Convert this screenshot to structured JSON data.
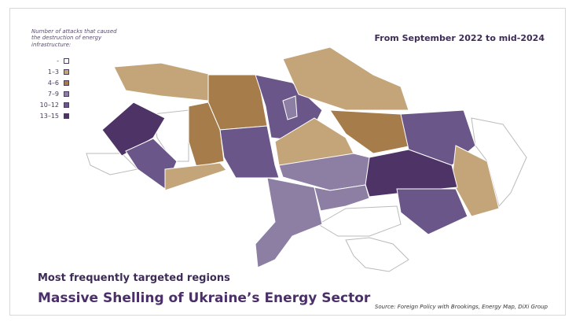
{
  "legend": {
    "title": "Number of attacks that caused the destruction of energy infrastructure:",
    "items": [
      {
        "label": "-",
        "color": "#ffffff"
      },
      {
        "label": "1–3",
        "color": "#c4a57a"
      },
      {
        "label": "4–6",
        "color": "#a57c4a"
      },
      {
        "label": "7–9",
        "color": "#8c7fa3"
      },
      {
        "label": "10–12",
        "color": "#6a5689"
      },
      {
        "label": "13–15",
        "color": "#4e3466"
      }
    ]
  },
  "period": "From September 2022 to mid-2024",
  "subtitle": "Most frequently targeted regions",
  "title": "Massive Shelling of Ukraine’s Energy Sector",
  "source": "Source: Foreign Policy with Brookings, Energy Map, DiXi Group"
}
